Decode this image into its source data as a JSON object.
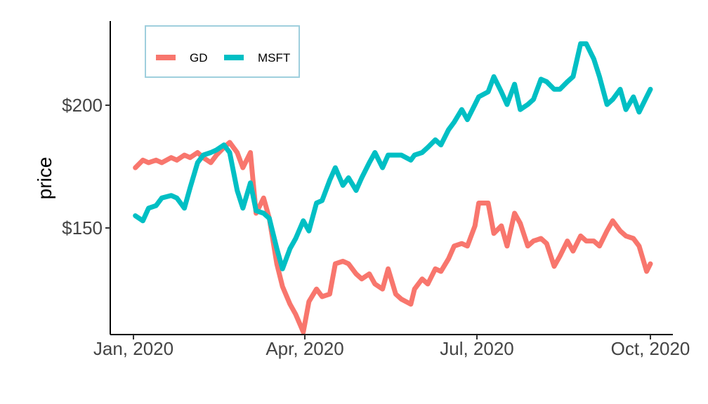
{
  "chart_data": {
    "type": "line",
    "title": "",
    "xlabel": "",
    "ylabel": "price",
    "x_ticks": [
      "Jan, 2020",
      "Apr, 2020",
      "Jul, 2020",
      "Oct, 2020"
    ],
    "y_ticks": [
      "$150",
      "$200"
    ],
    "xlim": [
      "2020-01-01",
      "2020-10-01"
    ],
    "ylim": [
      112,
      236
    ],
    "legend": {
      "position": "top-left",
      "entries": [
        "GD",
        "MSFT"
      ]
    },
    "grid": false,
    "series": [
      {
        "name": "GD",
        "color": "#F8766D",
        "points": [
          [
            "2020-01-02",
            178
          ],
          [
            "2020-01-06",
            181
          ],
          [
            "2020-01-09",
            180
          ],
          [
            "2020-01-13",
            181
          ],
          [
            "2020-01-16",
            180
          ],
          [
            "2020-01-21",
            182
          ],
          [
            "2020-01-24",
            181
          ],
          [
            "2020-01-28",
            183
          ],
          [
            "2020-01-31",
            182
          ],
          [
            "2020-02-04",
            184
          ],
          [
            "2020-02-07",
            182
          ],
          [
            "2020-02-11",
            180
          ],
          [
            "2020-02-14",
            183
          ],
          [
            "2020-02-18",
            186
          ],
          [
            "2020-02-21",
            188
          ],
          [
            "2020-02-25",
            184
          ],
          [
            "2020-02-28",
            178
          ],
          [
            "2020-03-03",
            184
          ],
          [
            "2020-03-06",
            160
          ],
          [
            "2020-03-10",
            166
          ],
          [
            "2020-03-13",
            158
          ],
          [
            "2020-03-17",
            140
          ],
          [
            "2020-03-20",
            131
          ],
          [
            "2020-03-24",
            124
          ],
          [
            "2020-03-27",
            120
          ],
          [
            "2020-03-31",
            113
          ],
          [
            "2020-04-03",
            125
          ],
          [
            "2020-04-07",
            130
          ],
          [
            "2020-04-10",
            127
          ],
          [
            "2020-04-14",
            128
          ],
          [
            "2020-04-17",
            140
          ],
          [
            "2020-04-21",
            141
          ],
          [
            "2020-04-24",
            140
          ],
          [
            "2020-04-28",
            136
          ],
          [
            "2020-05-01",
            134
          ],
          [
            "2020-05-05",
            136
          ],
          [
            "2020-05-08",
            132
          ],
          [
            "2020-05-12",
            130
          ],
          [
            "2020-05-15",
            138
          ],
          [
            "2020-05-19",
            128
          ],
          [
            "2020-05-22",
            126
          ],
          [
            "2020-05-27",
            124
          ],
          [
            "2020-05-29",
            130
          ],
          [
            "2020-06-02",
            134
          ],
          [
            "2020-06-05",
            132
          ],
          [
            "2020-06-09",
            138
          ],
          [
            "2020-06-12",
            137
          ],
          [
            "2020-06-16",
            142
          ],
          [
            "2020-06-19",
            147
          ],
          [
            "2020-06-23",
            148
          ],
          [
            "2020-06-26",
            147
          ],
          [
            "2020-06-30",
            155
          ],
          [
            "2020-07-02",
            164
          ],
          [
            "2020-07-07",
            164
          ],
          [
            "2020-07-10",
            152
          ],
          [
            "2020-07-14",
            155
          ],
          [
            "2020-07-17",
            147
          ],
          [
            "2020-07-21",
            160
          ],
          [
            "2020-07-24",
            156
          ],
          [
            "2020-07-28",
            147
          ],
          [
            "2020-07-31",
            149
          ],
          [
            "2020-08-04",
            150
          ],
          [
            "2020-08-07",
            148
          ],
          [
            "2020-08-11",
            139
          ],
          [
            "2020-08-14",
            143
          ],
          [
            "2020-08-18",
            149
          ],
          [
            "2020-08-21",
            145
          ],
          [
            "2020-08-25",
            151
          ],
          [
            "2020-08-28",
            149
          ],
          [
            "2020-09-01",
            149
          ],
          [
            "2020-09-04",
            147
          ],
          [
            "2020-09-08",
            153
          ],
          [
            "2020-09-11",
            157
          ],
          [
            "2020-09-15",
            153
          ],
          [
            "2020-09-18",
            151
          ],
          [
            "2020-09-22",
            150
          ],
          [
            "2020-09-25",
            147
          ],
          [
            "2020-09-29",
            137
          ],
          [
            "2020-10-01",
            140
          ]
        ]
      },
      {
        "name": "MSFT",
        "color": "#00BFC4",
        "points": [
          [
            "2020-01-02",
            159
          ],
          [
            "2020-01-06",
            157
          ],
          [
            "2020-01-09",
            162
          ],
          [
            "2020-01-13",
            163
          ],
          [
            "2020-01-16",
            166
          ],
          [
            "2020-01-21",
            167
          ],
          [
            "2020-01-24",
            166
          ],
          [
            "2020-01-28",
            162
          ],
          [
            "2020-01-31",
            170
          ],
          [
            "2020-02-04",
            180
          ],
          [
            "2020-02-07",
            183
          ],
          [
            "2020-02-11",
            184
          ],
          [
            "2020-02-14",
            185
          ],
          [
            "2020-02-18",
            187
          ],
          [
            "2020-02-21",
            184
          ],
          [
            "2020-02-25",
            169
          ],
          [
            "2020-02-28",
            162
          ],
          [
            "2020-03-03",
            172
          ],
          [
            "2020-03-06",
            161
          ],
          [
            "2020-03-10",
            160
          ],
          [
            "2020-03-13",
            158
          ],
          [
            "2020-03-17",
            146
          ],
          [
            "2020-03-20",
            138
          ],
          [
            "2020-03-24",
            146
          ],
          [
            "2020-03-27",
            150
          ],
          [
            "2020-03-31",
            157
          ],
          [
            "2020-04-03",
            153
          ],
          [
            "2020-04-07",
            164
          ],
          [
            "2020-04-10",
            165
          ],
          [
            "2020-04-14",
            173
          ],
          [
            "2020-04-17",
            178
          ],
          [
            "2020-04-21",
            171
          ],
          [
            "2020-04-24",
            174
          ],
          [
            "2020-04-28",
            169
          ],
          [
            "2020-05-01",
            174
          ],
          [
            "2020-05-05",
            180
          ],
          [
            "2020-05-08",
            184
          ],
          [
            "2020-05-12",
            178
          ],
          [
            "2020-05-15",
            183
          ],
          [
            "2020-05-19",
            183
          ],
          [
            "2020-05-22",
            183
          ],
          [
            "2020-05-27",
            181
          ],
          [
            "2020-05-29",
            183
          ],
          [
            "2020-06-02",
            184
          ],
          [
            "2020-06-05",
            186
          ],
          [
            "2020-06-09",
            189
          ],
          [
            "2020-06-12",
            187
          ],
          [
            "2020-06-16",
            193
          ],
          [
            "2020-06-19",
            196
          ],
          [
            "2020-06-23",
            201
          ],
          [
            "2020-06-26",
            197
          ],
          [
            "2020-06-30",
            203
          ],
          [
            "2020-07-02",
            206
          ],
          [
            "2020-07-07",
            208
          ],
          [
            "2020-07-10",
            214
          ],
          [
            "2020-07-14",
            208
          ],
          [
            "2020-07-17",
            203
          ],
          [
            "2020-07-21",
            211
          ],
          [
            "2020-07-24",
            201
          ],
          [
            "2020-07-28",
            203
          ],
          [
            "2020-07-31",
            205
          ],
          [
            "2020-08-04",
            213
          ],
          [
            "2020-08-07",
            212
          ],
          [
            "2020-08-11",
            209
          ],
          [
            "2020-08-14",
            209
          ],
          [
            "2020-08-18",
            212
          ],
          [
            "2020-08-21",
            214
          ],
          [
            "2020-08-25",
            227
          ],
          [
            "2020-08-28",
            227
          ],
          [
            "2020-09-01",
            221
          ],
          [
            "2020-09-04",
            214
          ],
          [
            "2020-09-08",
            203
          ],
          [
            "2020-09-11",
            205
          ],
          [
            "2020-09-15",
            209
          ],
          [
            "2020-09-18",
            201
          ],
          [
            "2020-09-22",
            206
          ],
          [
            "2020-09-25",
            200
          ],
          [
            "2020-09-29",
            206
          ],
          [
            "2020-10-01",
            209
          ]
        ]
      }
    ]
  }
}
